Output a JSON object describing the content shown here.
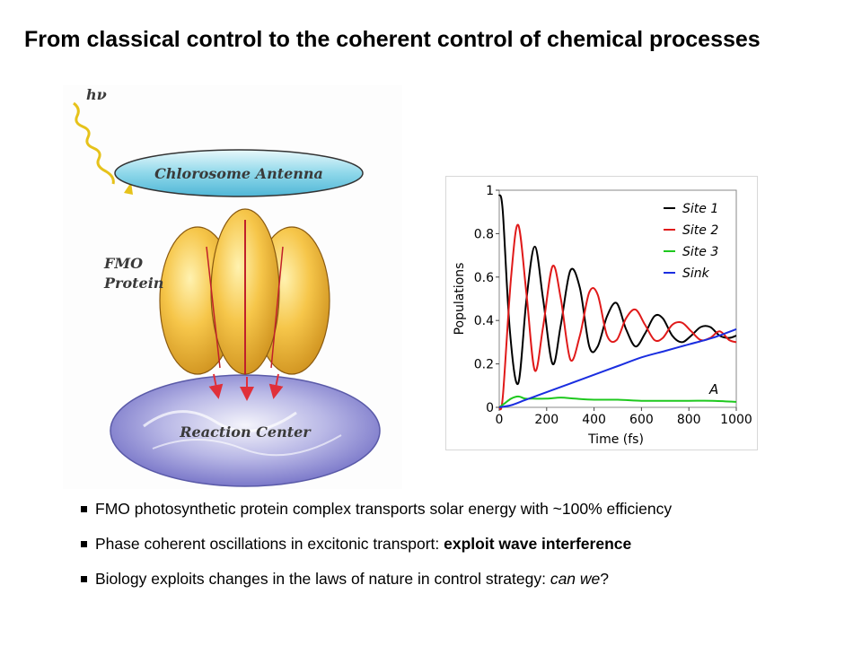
{
  "slide": {
    "title": "From classical control to the coherent control of chemical processes"
  },
  "diagram": {
    "photon_label": "hν",
    "antenna_label": "Chlorosome Antenna",
    "protein_label_line1": "FMO",
    "protein_label_line2": "Protein",
    "reaction_label": "Reaction Center"
  },
  "chart_data": {
    "type": "line",
    "title": "",
    "xlabel": "Time (fs)",
    "ylabel": "Populations",
    "xlim": [
      0,
      1000
    ],
    "ylim": [
      0,
      1
    ],
    "xticks": [
      0,
      200,
      400,
      600,
      800,
      1000
    ],
    "yticks": [
      0,
      0.2,
      0.4,
      0.6,
      0.8,
      1
    ],
    "ytick_labels": [
      "0",
      "0.2",
      "0.4",
      "0.6",
      "0.8",
      "1"
    ],
    "annotation": "A",
    "legend_position": "top-right",
    "series": [
      {
        "name": "Site 1",
        "color": "#000000",
        "x": [
          0,
          15,
          45,
          80,
          115,
          150,
          185,
          225,
          260,
          300,
          340,
          380,
          415,
          455,
          495,
          535,
          575,
          615,
          655,
          690,
          730,
          770,
          810,
          850,
          890,
          930,
          970,
          1000
        ],
        "y": [
          0.98,
          0.9,
          0.35,
          0.11,
          0.5,
          0.74,
          0.5,
          0.2,
          0.38,
          0.63,
          0.55,
          0.28,
          0.28,
          0.42,
          0.48,
          0.36,
          0.28,
          0.34,
          0.42,
          0.41,
          0.33,
          0.3,
          0.33,
          0.37,
          0.37,
          0.33,
          0.32,
          0.33
        ]
      },
      {
        "name": "Site 2",
        "color": "#e01a1a",
        "x": [
          0,
          15,
          50,
          80,
          115,
          150,
          185,
          225,
          260,
          300,
          340,
          380,
          415,
          455,
          495,
          535,
          575,
          615,
          655,
          690,
          730,
          770,
          810,
          850,
          890,
          930,
          970,
          1000
        ],
        "y": [
          0.0,
          0.05,
          0.6,
          0.84,
          0.52,
          0.17,
          0.37,
          0.65,
          0.5,
          0.22,
          0.33,
          0.53,
          0.52,
          0.33,
          0.31,
          0.41,
          0.45,
          0.38,
          0.31,
          0.32,
          0.38,
          0.39,
          0.35,
          0.31,
          0.32,
          0.35,
          0.31,
          0.3
        ]
      },
      {
        "name": "Site 3",
        "color": "#1ec81e",
        "x": [
          0,
          25,
          50,
          80,
          110,
          140,
          200,
          260,
          320,
          400,
          500,
          600,
          700,
          800,
          900,
          1000
        ],
        "y": [
          0.0,
          0.02,
          0.04,
          0.05,
          0.04,
          0.04,
          0.04,
          0.045,
          0.04,
          0.035,
          0.035,
          0.03,
          0.03,
          0.03,
          0.03,
          0.025
        ]
      },
      {
        "name": "Sink",
        "color": "#1a2ee0",
        "x": [
          0,
          50,
          100,
          150,
          200,
          300,
          400,
          500,
          600,
          700,
          800,
          900,
          1000
        ],
        "y": [
          0.0,
          0.01,
          0.03,
          0.05,
          0.07,
          0.11,
          0.15,
          0.19,
          0.23,
          0.26,
          0.29,
          0.32,
          0.36
        ]
      }
    ]
  },
  "bullets": [
    {
      "text_before": "FMO photosynthetic protein complex transports solar energy with ~100% efficiency",
      "emphasis": "",
      "emphasis_style": "",
      "text_after": ""
    },
    {
      "text_before": "Phase coherent oscillations in excitonic transport: ",
      "emphasis": "exploit wave interference",
      "emphasis_style": "bold",
      "text_after": ""
    },
    {
      "text_before": "Biology exploits changes in the laws of nature in control strategy: ",
      "emphasis": "can we",
      "emphasis_style": "italic",
      "text_after": "?"
    }
  ]
}
